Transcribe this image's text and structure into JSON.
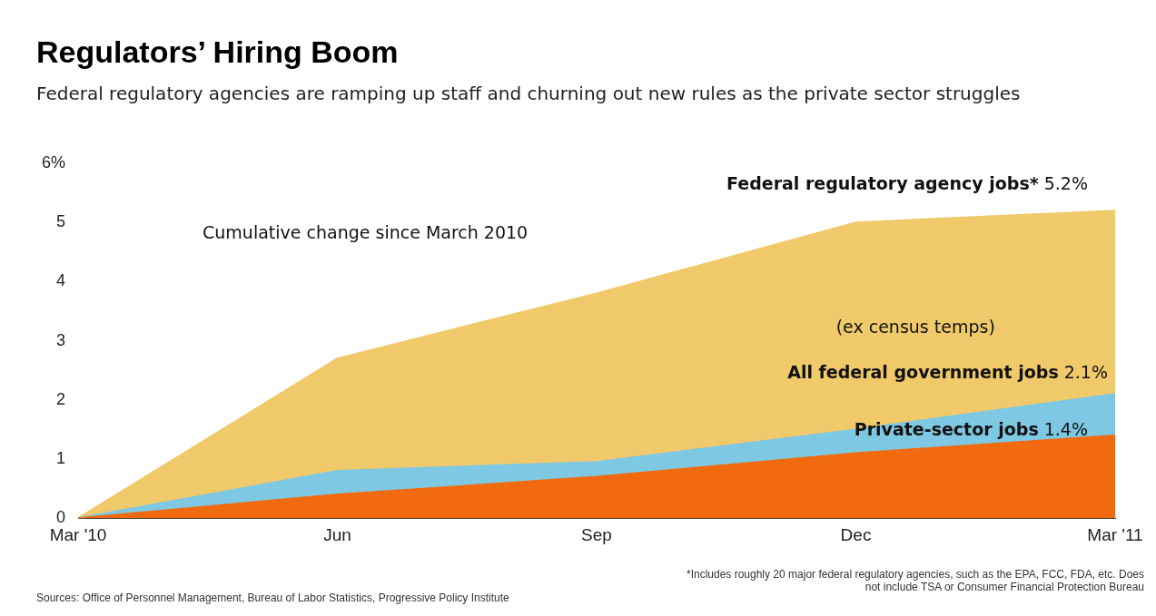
{
  "chart_data": {
    "type": "area",
    "title": "Regulators’ Hiring Boom",
    "subtitle": "Federal regulatory agencies are ramping up staff and churning out new rules as the private sector struggles",
    "categories": [
      "Mar '10",
      "Jun",
      "Sep",
      "Dec",
      "Mar '11"
    ],
    "series": [
      {
        "name": "Federal regulatory agency jobs*",
        "color": "#f0c96a",
        "values": [
          0,
          2.7,
          3.8,
          5.0,
          5.2
        ],
        "value_labels": [
          null,
          null,
          null,
          null,
          "5.2%"
        ]
      },
      {
        "name": "All federal government jobs",
        "color": "#7ec8e3",
        "values": [
          0,
          0.8,
          0.95,
          1.5,
          2.1
        ],
        "value_labels": [
          null,
          null,
          null,
          null,
          "2.1%"
        ]
      },
      {
        "name": "Private-sector jobs",
        "color": "#f26a10",
        "values": [
          0,
          0.4,
          0.7,
          1.1,
          1.4
        ],
        "value_labels": [
          null,
          null,
          null,
          null,
          "1.4%"
        ]
      }
    ],
    "ylim": [
      0,
      6
    ],
    "yticks": [
      0,
      1,
      2,
      3,
      4,
      5,
      {
        "value": 6,
        "label": "6%"
      }
    ],
    "grid": false,
    "legend": false,
    "annotations": [
      "Cumulative change since March 2010",
      "(ex census temps)",
      "Sources: Office of Personnel Management, Bureau of Labor Statistics, Progressive Policy Institute",
      "*Includes roughly 20 major federal regulatory agencies, such as the EPA, FCC, FDA, etc. Does not include TSA or Consumer Financial Protection Bureau"
    ]
  }
}
